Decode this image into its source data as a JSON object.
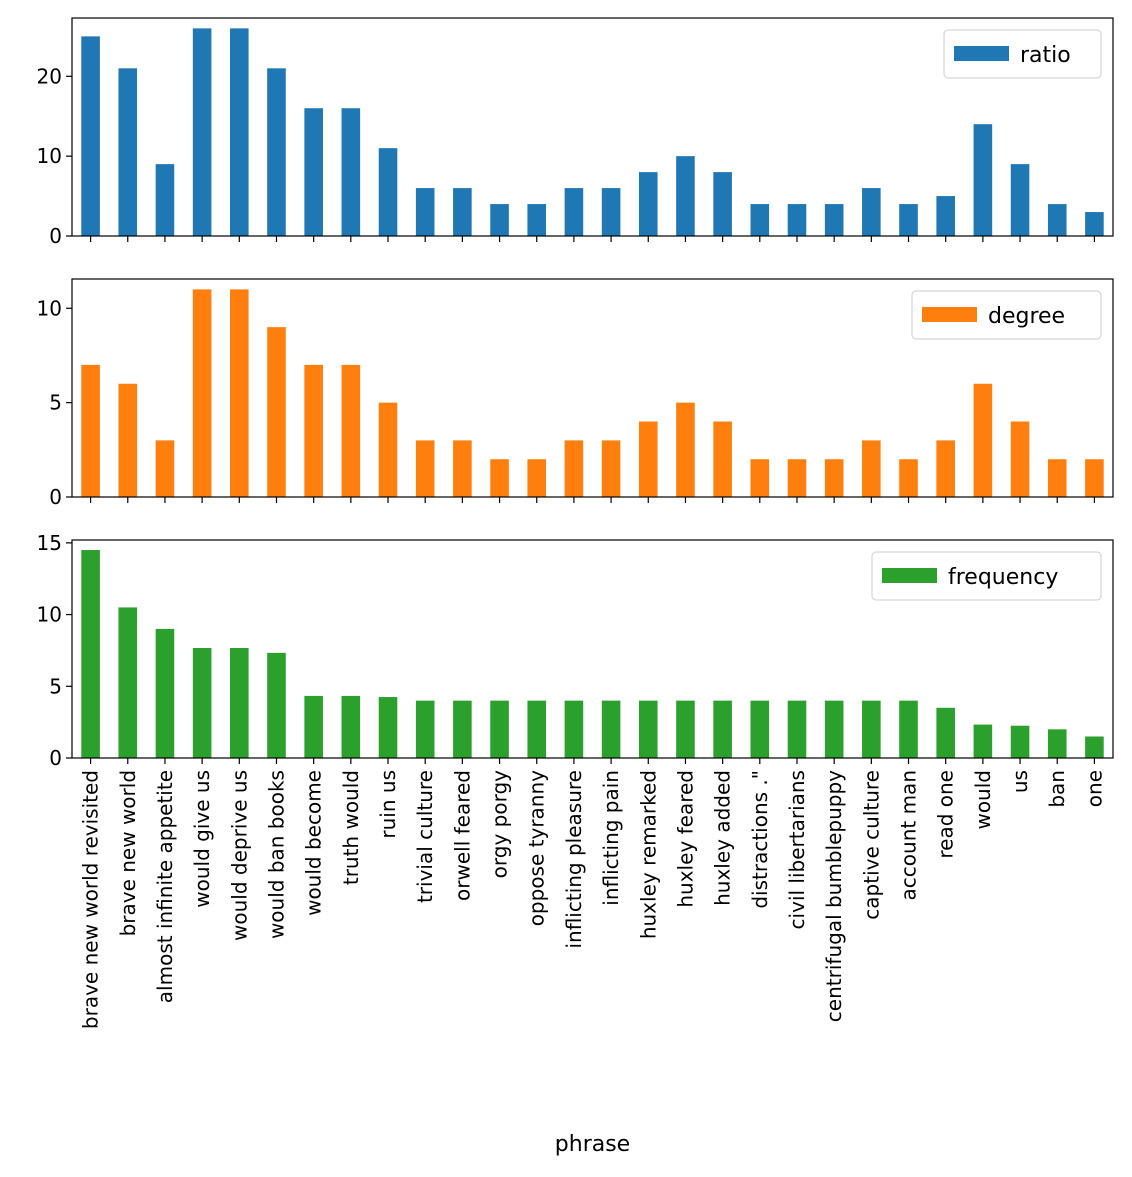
{
  "chart_data": {
    "type": "bar",
    "xlabel": "phrase",
    "categories": [
      "brave new world revisited",
      "brave new world",
      "almost infinite appetite",
      "would give us",
      "would deprive us",
      "would ban books",
      "would become",
      "truth would",
      "ruin us",
      "trivial culture",
      "orwell feared",
      "orgy porgy",
      "oppose tyranny",
      "inflicting pleasure",
      "inflicting pain",
      "huxley remarked",
      "huxley feared",
      "huxley added",
      "distractions .\"",
      "civil libertarians",
      "centrifugal bumblepuppy",
      "captive culture",
      "account man",
      "read one",
      "would",
      "us",
      "ban",
      "one"
    ],
    "legend_position": "upper right",
    "grid": false,
    "subplots": [
      {
        "name": "ratio",
        "color": "#1f77b4",
        "ylim": [
          0,
          27.3
        ],
        "yticks": [
          0,
          10,
          20
        ],
        "values": [
          25,
          21,
          9,
          26,
          26,
          21,
          16,
          16,
          11,
          6,
          6,
          4,
          4,
          6,
          6,
          8,
          10,
          8,
          4,
          4,
          4,
          6,
          4,
          5,
          14,
          9,
          4,
          3
        ]
      },
      {
        "name": "degree",
        "color": "#ff7f0e",
        "ylim": [
          0,
          11.55
        ],
        "yticks": [
          0,
          5,
          10
        ],
        "values": [
          7,
          6,
          3,
          11,
          11,
          9,
          7,
          7,
          5,
          3,
          3,
          2,
          2,
          3,
          3,
          4,
          5,
          4,
          2,
          2,
          2,
          3,
          2,
          3,
          6,
          4,
          2,
          2
        ]
      },
      {
        "name": "frequency",
        "color": "#2ca02c",
        "ylim": [
          0,
          15.2
        ],
        "yticks": [
          0,
          5,
          10,
          15
        ],
        "values": [
          14.5,
          10.5,
          9.0,
          7.67,
          7.67,
          7.33,
          4.33,
          4.33,
          4.25,
          4.0,
          4.0,
          4.0,
          4.0,
          4.0,
          4.0,
          4.0,
          4.0,
          4.0,
          4.0,
          4.0,
          4.0,
          4.0,
          4.0,
          3.5,
          2.33,
          2.25,
          2.0,
          1.5
        ]
      }
    ]
  }
}
